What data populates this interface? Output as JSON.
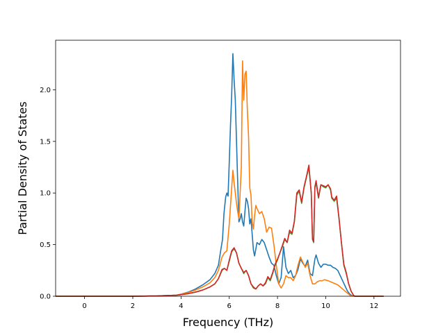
{
  "chart_data": {
    "type": "line",
    "title": "",
    "xlabel": "Frequency (THz)",
    "ylabel": "Partial Density of States",
    "xlim": [
      -1.2,
      13.1
    ],
    "ylim": [
      0,
      2.48
    ],
    "xticks": [
      0,
      2,
      4,
      6,
      8,
      10,
      12
    ],
    "xtick_labels": [
      "0",
      "2",
      "4",
      "6",
      "8",
      "10",
      "12"
    ],
    "yticks": [
      0.0,
      0.5,
      1.0,
      1.5,
      2.0
    ],
    "ytick_labels": [
      "0.0",
      "0.5",
      "1.0",
      "1.5",
      "2.0"
    ],
    "grid": false,
    "legend": "none",
    "series": [
      {
        "color": "#1f77b4",
        "points": [
          [
            -1.2,
            0
          ],
          [
            0,
            0
          ],
          [
            2,
            0
          ],
          [
            3,
            0.003
          ],
          [
            3.8,
            0.01
          ],
          [
            4.0,
            0.02
          ],
          [
            4.3,
            0.04
          ],
          [
            4.6,
            0.07
          ],
          [
            4.9,
            0.11
          ],
          [
            5.2,
            0.16
          ],
          [
            5.4,
            0.22
          ],
          [
            5.55,
            0.3
          ],
          [
            5.65,
            0.45
          ],
          [
            5.72,
            0.55
          ],
          [
            5.78,
            0.8
          ],
          [
            5.85,
            0.96
          ],
          [
            5.9,
            1.0
          ],
          [
            5.95,
            0.97
          ],
          [
            6.0,
            1.3
          ],
          [
            6.05,
            1.65
          ],
          [
            6.1,
            1.95
          ],
          [
            6.15,
            2.35
          ],
          [
            6.2,
            2.1
          ],
          [
            6.25,
            1.9
          ],
          [
            6.3,
            1.5
          ],
          [
            6.35,
            1.1
          ],
          [
            6.4,
            0.72
          ],
          [
            6.45,
            0.75
          ],
          [
            6.5,
            0.8
          ],
          [
            6.55,
            0.72
          ],
          [
            6.6,
            0.68
          ],
          [
            6.65,
            0.82
          ],
          [
            6.7,
            0.95
          ],
          [
            6.75,
            0.92
          ],
          [
            6.8,
            0.85
          ],
          [
            6.85,
            0.7
          ],
          [
            6.9,
            0.75
          ],
          [
            6.95,
            0.6
          ],
          [
            7.0,
            0.45
          ],
          [
            7.05,
            0.39
          ],
          [
            7.15,
            0.52
          ],
          [
            7.25,
            0.5
          ],
          [
            7.35,
            0.55
          ],
          [
            7.45,
            0.52
          ],
          [
            7.55,
            0.45
          ],
          [
            7.65,
            0.38
          ],
          [
            7.75,
            0.32
          ],
          [
            7.85,
            0.3
          ],
          [
            7.95,
            0.2
          ],
          [
            8.05,
            0.12
          ],
          [
            8.15,
            0.18
          ],
          [
            8.25,
            0.48
          ],
          [
            8.35,
            0.28
          ],
          [
            8.45,
            0.22
          ],
          [
            8.55,
            0.25
          ],
          [
            8.65,
            0.18
          ],
          [
            8.75,
            0.2
          ],
          [
            8.85,
            0.26
          ],
          [
            8.95,
            0.36
          ],
          [
            9.05,
            0.32
          ],
          [
            9.15,
            0.29
          ],
          [
            9.25,
            0.35
          ],
          [
            9.35,
            0.22
          ],
          [
            9.45,
            0.2
          ],
          [
            9.55,
            0.36
          ],
          [
            9.6,
            0.4
          ],
          [
            9.7,
            0.32
          ],
          [
            9.8,
            0.28
          ],
          [
            9.9,
            0.31
          ],
          [
            10.0,
            0.31
          ],
          [
            10.1,
            0.3
          ],
          [
            10.2,
            0.3
          ],
          [
            10.3,
            0.28
          ],
          [
            10.4,
            0.27
          ],
          [
            10.5,
            0.25
          ],
          [
            10.6,
            0.2
          ],
          [
            10.7,
            0.15
          ],
          [
            10.8,
            0.1
          ],
          [
            10.9,
            0.05
          ],
          [
            11.0,
            0.02
          ],
          [
            11.1,
            0.005
          ],
          [
            11.2,
            0
          ],
          [
            12.4,
            0
          ]
        ]
      },
      {
        "color": "#ff7f0e",
        "points": [
          [
            -1.2,
            0
          ],
          [
            0,
            0
          ],
          [
            2,
            0
          ],
          [
            3,
            0.003
          ],
          [
            3.8,
            0.01
          ],
          [
            4.0,
            0.02
          ],
          [
            4.3,
            0.035
          ],
          [
            4.6,
            0.06
          ],
          [
            4.9,
            0.09
          ],
          [
            5.2,
            0.13
          ],
          [
            5.4,
            0.18
          ],
          [
            5.55,
            0.25
          ],
          [
            5.7,
            0.38
          ],
          [
            5.8,
            0.42
          ],
          [
            5.9,
            0.44
          ],
          [
            6.0,
            0.7
          ],
          [
            6.1,
            1.05
          ],
          [
            6.15,
            1.22
          ],
          [
            6.2,
            1.1
          ],
          [
            6.25,
            1.0
          ],
          [
            6.3,
            0.9
          ],
          [
            6.35,
            0.82
          ],
          [
            6.4,
            0.75
          ],
          [
            6.5,
            1.25
          ],
          [
            6.55,
            2.28
          ],
          [
            6.6,
            1.9
          ],
          [
            6.65,
            2.15
          ],
          [
            6.7,
            2.18
          ],
          [
            6.75,
            1.8
          ],
          [
            6.8,
            1.55
          ],
          [
            6.85,
            1.05
          ],
          [
            6.9,
            0.98
          ],
          [
            6.95,
            0.72
          ],
          [
            7.0,
            0.65
          ],
          [
            7.05,
            0.78
          ],
          [
            7.1,
            0.88
          ],
          [
            7.15,
            0.85
          ],
          [
            7.25,
            0.8
          ],
          [
            7.35,
            0.82
          ],
          [
            7.45,
            0.75
          ],
          [
            7.55,
            0.62
          ],
          [
            7.65,
            0.67
          ],
          [
            7.75,
            0.66
          ],
          [
            7.85,
            0.5
          ],
          [
            7.95,
            0.3
          ],
          [
            8.05,
            0.12
          ],
          [
            8.15,
            0.08
          ],
          [
            8.25,
            0.12
          ],
          [
            8.35,
            0.2
          ],
          [
            8.45,
            0.18
          ],
          [
            8.55,
            0.18
          ],
          [
            8.65,
            0.15
          ],
          [
            8.75,
            0.2
          ],
          [
            8.85,
            0.3
          ],
          [
            8.95,
            0.38
          ],
          [
            9.05,
            0.33
          ],
          [
            9.15,
            0.28
          ],
          [
            9.25,
            0.32
          ],
          [
            9.35,
            0.2
          ],
          [
            9.45,
            0.12
          ],
          [
            9.55,
            0.12
          ],
          [
            9.65,
            0.14
          ],
          [
            9.75,
            0.15
          ],
          [
            9.85,
            0.15
          ],
          [
            9.95,
            0.16
          ],
          [
            10.1,
            0.15
          ],
          [
            10.2,
            0.14
          ],
          [
            10.3,
            0.13
          ],
          [
            10.4,
            0.12
          ],
          [
            10.5,
            0.11
          ],
          [
            10.6,
            0.09
          ],
          [
            10.7,
            0.07
          ],
          [
            10.8,
            0.05
          ],
          [
            10.9,
            0.03
          ],
          [
            11.0,
            0.01
          ],
          [
            11.1,
            0.003
          ],
          [
            11.2,
            0
          ],
          [
            12.4,
            0
          ]
        ]
      },
      {
        "color": "#2ca02c",
        "points": [
          [
            -1.2,
            0
          ],
          [
            0,
            0
          ],
          [
            2,
            0
          ],
          [
            3,
            0.003
          ],
          [
            3.8,
            0.01
          ],
          [
            4.0,
            0.015
          ],
          [
            4.3,
            0.025
          ],
          [
            4.6,
            0.04
          ],
          [
            4.9,
            0.06
          ],
          [
            5.2,
            0.09
          ],
          [
            5.4,
            0.12
          ],
          [
            5.55,
            0.17
          ],
          [
            5.7,
            0.25
          ],
          [
            5.8,
            0.27
          ],
          [
            5.9,
            0.25
          ],
          [
            6.0,
            0.34
          ],
          [
            6.1,
            0.43
          ],
          [
            6.2,
            0.46
          ],
          [
            6.3,
            0.42
          ],
          [
            6.4,
            0.32
          ],
          [
            6.5,
            0.27
          ],
          [
            6.6,
            0.22
          ],
          [
            6.7,
            0.25
          ],
          [
            6.8,
            0.2
          ],
          [
            6.9,
            0.12
          ],
          [
            7.0,
            0.08
          ],
          [
            7.1,
            0.07
          ],
          [
            7.2,
            0.1
          ],
          [
            7.3,
            0.12
          ],
          [
            7.4,
            0.1
          ],
          [
            7.5,
            0.12
          ],
          [
            7.6,
            0.18
          ],
          [
            7.7,
            0.15
          ],
          [
            7.8,
            0.22
          ],
          [
            7.9,
            0.3
          ],
          [
            8.0,
            0.35
          ],
          [
            8.1,
            0.42
          ],
          [
            8.2,
            0.48
          ],
          [
            8.3,
            0.55
          ],
          [
            8.4,
            0.52
          ],
          [
            8.5,
            0.62
          ],
          [
            8.6,
            0.6
          ],
          [
            8.7,
            0.72
          ],
          [
            8.8,
            0.98
          ],
          [
            8.9,
            1.02
          ],
          [
            9.0,
            0.9
          ],
          [
            9.1,
            1.05
          ],
          [
            9.2,
            1.15
          ],
          [
            9.3,
            1.25
          ],
          [
            9.4,
            1.0
          ],
          [
            9.45,
            0.55
          ],
          [
            9.5,
            0.52
          ],
          [
            9.55,
            1.05
          ],
          [
            9.6,
            1.1
          ],
          [
            9.7,
            0.95
          ],
          [
            9.8,
            1.08
          ],
          [
            9.9,
            1.06
          ],
          [
            10.0,
            1.05
          ],
          [
            10.1,
            1.08
          ],
          [
            10.2,
            1.03
          ],
          [
            10.25,
            0.95
          ],
          [
            10.35,
            0.92
          ],
          [
            10.45,
            0.95
          ],
          [
            10.55,
            0.75
          ],
          [
            10.65,
            0.52
          ],
          [
            10.75,
            0.3
          ],
          [
            10.85,
            0.22
          ],
          [
            10.95,
            0.12
          ],
          [
            11.05,
            0.05
          ],
          [
            11.15,
            0.01
          ],
          [
            11.2,
            0
          ],
          [
            12.4,
            0
          ]
        ]
      },
      {
        "color": "#d62728",
        "points": [
          [
            -1.2,
            0
          ],
          [
            0,
            0
          ],
          [
            2,
            0
          ],
          [
            3,
            0.003
          ],
          [
            3.8,
            0.01
          ],
          [
            4.0,
            0.015
          ],
          [
            4.3,
            0.025
          ],
          [
            4.6,
            0.04
          ],
          [
            4.9,
            0.06
          ],
          [
            5.2,
            0.09
          ],
          [
            5.4,
            0.12
          ],
          [
            5.55,
            0.17
          ],
          [
            5.7,
            0.26
          ],
          [
            5.8,
            0.27
          ],
          [
            5.9,
            0.25
          ],
          [
            6.0,
            0.35
          ],
          [
            6.1,
            0.44
          ],
          [
            6.2,
            0.47
          ],
          [
            6.3,
            0.42
          ],
          [
            6.4,
            0.32
          ],
          [
            6.5,
            0.27
          ],
          [
            6.6,
            0.23
          ],
          [
            6.7,
            0.25
          ],
          [
            6.8,
            0.2
          ],
          [
            6.9,
            0.12
          ],
          [
            7.0,
            0.09
          ],
          [
            7.1,
            0.07
          ],
          [
            7.2,
            0.1
          ],
          [
            7.3,
            0.12
          ],
          [
            7.4,
            0.1
          ],
          [
            7.5,
            0.13
          ],
          [
            7.6,
            0.19
          ],
          [
            7.7,
            0.16
          ],
          [
            7.8,
            0.23
          ],
          [
            7.9,
            0.31
          ],
          [
            8.0,
            0.36
          ],
          [
            8.1,
            0.42
          ],
          [
            8.2,
            0.49
          ],
          [
            8.3,
            0.56
          ],
          [
            8.4,
            0.52
          ],
          [
            8.5,
            0.64
          ],
          [
            8.6,
            0.61
          ],
          [
            8.7,
            0.73
          ],
          [
            8.8,
            1.0
          ],
          [
            8.9,
            1.03
          ],
          [
            9.0,
            0.91
          ],
          [
            9.1,
            1.06
          ],
          [
            9.2,
            1.16
          ],
          [
            9.3,
            1.27
          ],
          [
            9.4,
            1.0
          ],
          [
            9.45,
            0.56
          ],
          [
            9.5,
            0.53
          ],
          [
            9.55,
            1.06
          ],
          [
            9.6,
            1.12
          ],
          [
            9.7,
            0.96
          ],
          [
            9.8,
            1.08
          ],
          [
            9.9,
            1.07
          ],
          [
            10.0,
            1.06
          ],
          [
            10.1,
            1.08
          ],
          [
            10.2,
            1.04
          ],
          [
            10.25,
            0.96
          ],
          [
            10.35,
            0.93
          ],
          [
            10.45,
            0.97
          ],
          [
            10.55,
            0.76
          ],
          [
            10.65,
            0.52
          ],
          [
            10.75,
            0.31
          ],
          [
            10.85,
            0.23
          ],
          [
            10.95,
            0.12
          ],
          [
            11.05,
            0.05
          ],
          [
            11.15,
            0.01
          ],
          [
            11.2,
            0
          ],
          [
            12.4,
            0
          ]
        ]
      }
    ]
  }
}
